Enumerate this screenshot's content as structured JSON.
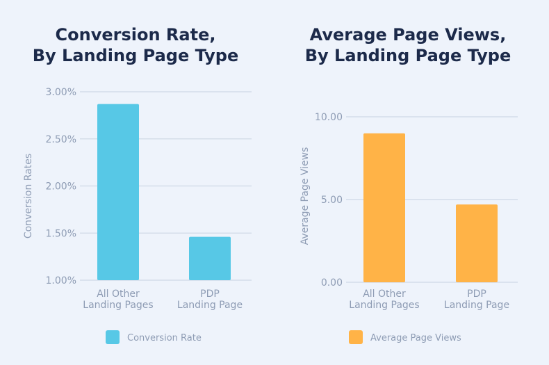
{
  "chart_data": [
    {
      "type": "bar",
      "title": [
        "Conversion Rate,",
        "By Landing Page Type"
      ],
      "categories": [
        [
          "All Other",
          "Landing Pages"
        ],
        [
          "PDP",
          "Landing Page"
        ]
      ],
      "series": [
        {
          "name": "Conversion Rate",
          "values": [
            2.87,
            1.46
          ],
          "color": "#57c8e6"
        }
      ],
      "ylabel": "Conversion Rates",
      "ylim": [
        1.0,
        3.0
      ],
      "yticks": [
        1.0,
        1.5,
        2.0,
        2.5,
        3.0
      ],
      "ytick_labels": [
        "1.00%",
        "1.50%",
        "2.00%",
        "2.50%",
        "3.00%"
      ],
      "legend": "bottom"
    },
    {
      "type": "bar",
      "title": [
        "Average Page Views,",
        "By Landing Page Type"
      ],
      "categories": [
        [
          "All Other",
          "Landing Pages"
        ],
        [
          "PDP",
          "Landing Page"
        ]
      ],
      "series": [
        {
          "name": "Average Page Views",
          "values": [
            9.0,
            4.7
          ],
          "color": "#ffb347"
        }
      ],
      "ylabel": "Average Page Views",
      "ylim": [
        0,
        10
      ],
      "yticks": [
        0,
        5,
        10
      ],
      "ytick_labels": [
        "0.00",
        "5.00",
        "10.00"
      ],
      "legend": "bottom"
    }
  ]
}
